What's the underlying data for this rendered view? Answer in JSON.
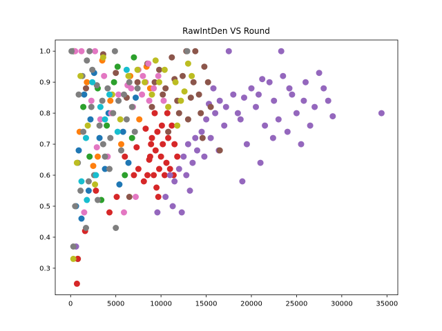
{
  "chart_data": {
    "type": "scatter",
    "title": "RawIntDen VS Round",
    "xlabel": "",
    "ylabel": "",
    "xlim": [
      -1700,
      36200
    ],
    "ylim": [
      0.214,
      1.036
    ],
    "xticks": [
      0,
      5000,
      10000,
      15000,
      20000,
      25000,
      30000,
      35000
    ],
    "xtick_labels": [
      "0",
      "5000",
      "10000",
      "15000",
      "20000",
      "25000",
      "30000",
      "35000"
    ],
    "yticks": [
      0.3,
      0.4,
      0.5,
      0.6,
      0.7,
      0.8,
      0.9,
      1.0
    ],
    "ytick_labels": [
      "0.3",
      "0.4",
      "0.5",
      "0.6",
      "0.7",
      "0.8",
      "0.9",
      "1.0"
    ],
    "grid": false,
    "legend": false,
    "series_colors": [
      "#1f77b4",
      "#ff7f0e",
      "#2ca02c",
      "#d62728",
      "#9467bd",
      "#8c564b",
      "#e377c2",
      "#7f7f7f",
      "#bcbd22",
      "#17becf"
    ],
    "series": [
      {
        "values": [
          [
            200,
            1.0
          ],
          [
            600,
            0.5
          ],
          [
            900,
            0.68
          ],
          [
            1200,
            0.46
          ],
          [
            1500,
            0.86
          ],
          [
            2000,
            0.55
          ],
          [
            2600,
            0.93
          ],
          [
            3200,
            0.72
          ],
          [
            4200,
            0.8
          ],
          [
            5400,
            0.57
          ],
          [
            6400,
            0.64
          ],
          [
            7200,
            0.85
          ],
          [
            3800,
            0.62
          ],
          [
            5800,
            0.74
          ],
          [
            2200,
            0.78
          ]
        ]
      },
      {
        "values": [
          [
            400,
            1.0
          ],
          [
            1000,
            0.74
          ],
          [
            1800,
            0.9
          ],
          [
            2500,
            0.63
          ],
          [
            3500,
            0.97
          ],
          [
            4400,
            0.84
          ],
          [
            5600,
            0.7
          ],
          [
            6600,
            0.92
          ],
          [
            7600,
            0.78
          ],
          [
            8400,
            0.95
          ],
          [
            8800,
            0.88
          ],
          [
            3000,
            0.66
          ]
        ]
      },
      {
        "values": [
          [
            300,
            1.0
          ],
          [
            800,
            0.33
          ],
          [
            1400,
            0.82
          ],
          [
            2100,
            0.66
          ],
          [
            3000,
            0.88
          ],
          [
            4000,
            0.76
          ],
          [
            5200,
            0.95
          ],
          [
            6000,
            0.6
          ],
          [
            7000,
            0.98
          ],
          [
            3400,
            0.52
          ],
          [
            4800,
            0.9
          ],
          [
            6800,
            0.72
          ]
        ]
      },
      {
        "values": [
          [
            700,
            0.25
          ],
          [
            800,
            0.33
          ],
          [
            1600,
            0.42
          ],
          [
            2800,
            0.55
          ],
          [
            4300,
            0.48
          ],
          [
            5100,
            0.53
          ],
          [
            6000,
            0.66
          ],
          [
            7000,
            0.6
          ],
          [
            7500,
            0.62
          ],
          [
            8100,
            0.58
          ],
          [
            8500,
            0.6
          ],
          [
            8800,
            0.66
          ],
          [
            9000,
            0.72
          ],
          [
            9200,
            0.6
          ],
          [
            9400,
            0.68
          ],
          [
            9600,
            0.74
          ],
          [
            9800,
            0.62
          ],
          [
            10000,
            0.66
          ],
          [
            10200,
            0.7
          ],
          [
            10400,
            0.6
          ],
          [
            10600,
            0.64
          ],
          [
            10800,
            0.72
          ],
          [
            11000,
            0.62
          ],
          [
            11200,
            0.76
          ],
          [
            11500,
            0.7
          ],
          [
            11800,
            0.66
          ],
          [
            9300,
            0.8
          ],
          [
            8900,
            0.7
          ],
          [
            10100,
            0.76
          ],
          [
            10700,
            0.8
          ],
          [
            9500,
            0.56
          ],
          [
            9700,
            0.53
          ],
          [
            8700,
            0.65
          ],
          [
            11400,
            0.6
          ],
          [
            7300,
            0.69
          ],
          [
            8300,
            0.75
          ]
        ]
      },
      {
        "values": [
          [
            600,
            0.37
          ],
          [
            9600,
            0.48
          ],
          [
            10500,
            0.53
          ],
          [
            11000,
            0.6
          ],
          [
            11500,
            0.58
          ],
          [
            12000,
            0.62
          ],
          [
            12500,
            0.66
          ],
          [
            13000,
            0.7
          ],
          [
            13500,
            0.64
          ],
          [
            14000,
            0.68
          ],
          [
            14500,
            0.74
          ],
          [
            15000,
            0.78
          ],
          [
            15500,
            0.72
          ],
          [
            16000,
            0.8
          ],
          [
            16500,
            0.84
          ],
          [
            17000,
            0.76
          ],
          [
            17500,
            1.0
          ],
          [
            18000,
            0.86
          ],
          [
            18500,
            0.8
          ],
          [
            19000,
            0.58
          ],
          [
            19500,
            0.7
          ],
          [
            20000,
            0.88
          ],
          [
            20500,
            0.82
          ],
          [
            21000,
            0.64
          ],
          [
            21500,
            0.76
          ],
          [
            22000,
            0.9
          ],
          [
            22500,
            0.84
          ],
          [
            23000,
            0.78
          ],
          [
            23500,
            0.92
          ],
          [
            24000,
            0.74
          ],
          [
            24500,
            0.86
          ],
          [
            25000,
            0.8
          ],
          [
            25500,
            0.7
          ],
          [
            26000,
            0.9
          ],
          [
            26500,
            0.76
          ],
          [
            27000,
            0.82
          ],
          [
            27500,
            0.93
          ],
          [
            28000,
            0.88
          ],
          [
            28500,
            0.84
          ],
          [
            29000,
            0.79
          ],
          [
            34400,
            0.8
          ],
          [
            22400,
            0.72
          ],
          [
            23300,
            1.0
          ],
          [
            20800,
            0.86
          ],
          [
            19200,
            0.85
          ],
          [
            24200,
            0.88
          ],
          [
            25800,
            0.84
          ],
          [
            21200,
            0.91
          ],
          [
            18800,
            0.78
          ],
          [
            17200,
            0.82
          ],
          [
            16400,
            0.68
          ],
          [
            13200,
            0.55
          ],
          [
            12300,
            0.48
          ],
          [
            14800,
            0.66
          ],
          [
            15800,
            0.88
          ],
          [
            11300,
            0.5
          ],
          [
            12800,
            0.6
          ],
          [
            13800,
            0.72
          ],
          [
            15300,
            0.83
          ]
        ]
      },
      {
        "values": [
          [
            1700,
            0.88
          ],
          [
            3600,
            0.99
          ],
          [
            5000,
            0.93
          ],
          [
            6200,
            0.85
          ],
          [
            7400,
            0.9
          ],
          [
            8500,
            0.96
          ],
          [
            9000,
            0.82
          ],
          [
            9800,
            0.94
          ],
          [
            10500,
            0.88
          ],
          [
            11200,
            0.98
          ],
          [
            11800,
            0.84
          ],
          [
            12400,
            0.92
          ],
          [
            13000,
            0.78
          ],
          [
            13600,
            0.9
          ],
          [
            14200,
            0.86
          ],
          [
            14800,
            0.95
          ],
          [
            15500,
            0.82
          ],
          [
            16500,
            0.68
          ],
          [
            12800,
            1.0
          ],
          [
            13800,
            1.0
          ],
          [
            14600,
            0.72
          ],
          [
            10800,
            0.74
          ],
          [
            12000,
            0.8
          ],
          [
            13300,
            0.85
          ],
          [
            11500,
            0.91
          ],
          [
            14400,
            0.8
          ],
          [
            6500,
            0.53
          ],
          [
            15200,
            0.9
          ],
          [
            9300,
            0.9
          ],
          [
            10200,
            0.86
          ]
        ]
      },
      {
        "values": [
          [
            500,
            1.0
          ],
          [
            1500,
            0.48
          ],
          [
            2300,
            0.84
          ],
          [
            2900,
            0.69
          ],
          [
            3700,
            0.92
          ],
          [
            4500,
            0.8
          ],
          [
            5300,
            0.86
          ],
          [
            5900,
            0.48
          ],
          [
            6300,
            0.89
          ],
          [
            6900,
            0.82
          ],
          [
            7500,
            0.94
          ],
          [
            7900,
            0.86
          ],
          [
            8300,
            0.9
          ],
          [
            8700,
            0.84
          ],
          [
            9200,
            0.88
          ],
          [
            9700,
            0.92
          ],
          [
            10300,
            0.84
          ],
          [
            7200,
            0.53
          ],
          [
            4100,
            0.66
          ],
          [
            3300,
            0.78
          ],
          [
            8000,
            0.92
          ],
          [
            6700,
            0.88
          ],
          [
            8600,
            0.96
          ],
          [
            1200,
            1.0
          ],
          [
            2700,
            1.0
          ]
        ]
      },
      {
        "values": [
          [
            100,
            1.0
          ],
          [
            300,
            0.37
          ],
          [
            500,
            0.5
          ],
          [
            800,
            0.64
          ],
          [
            1100,
            0.55
          ],
          [
            1400,
            0.74
          ],
          [
            1700,
            0.43
          ],
          [
            2000,
            0.58
          ],
          [
            2300,
            0.82
          ],
          [
            2600,
            0.6
          ],
          [
            2900,
            0.89
          ],
          [
            3200,
            0.76
          ],
          [
            3500,
            0.84
          ],
          [
            3800,
            0.66
          ],
          [
            4100,
            0.88
          ],
          [
            4400,
            0.72
          ],
          [
            4700,
            0.8
          ],
          [
            5000,
            0.43
          ],
          [
            5300,
            0.84
          ],
          [
            5600,
            0.68
          ],
          [
            5900,
            0.86
          ],
          [
            6200,
            0.78
          ],
          [
            6500,
            0.9
          ],
          [
            6800,
            0.82
          ],
          [
            7100,
            0.74
          ],
          [
            7400,
            0.88
          ],
          [
            1800,
            0.97
          ],
          [
            2400,
            0.94
          ],
          [
            3000,
            0.52
          ],
          [
            900,
            0.86
          ],
          [
            4300,
            0.62
          ],
          [
            3600,
            0.7
          ],
          [
            1300,
            0.92
          ],
          [
            2100,
            1.0
          ],
          [
            4900,
            1.0
          ],
          [
            12900,
            1.0
          ]
        ]
      },
      {
        "values": [
          [
            300,
            0.33
          ],
          [
            700,
            0.64
          ],
          [
            1100,
            0.92
          ],
          [
            1900,
            0.76
          ],
          [
            2700,
            0.57
          ],
          [
            3600,
            0.98
          ],
          [
            4600,
            0.86
          ],
          [
            5500,
            0.78
          ],
          [
            6400,
            0.92
          ],
          [
            7400,
            0.94
          ],
          [
            8200,
            0.9
          ],
          [
            9000,
            0.86
          ],
          [
            9800,
            0.9
          ],
          [
            10800,
            0.82
          ],
          [
            11800,
            0.76
          ],
          [
            12600,
            0.87
          ],
          [
            13400,
            0.92
          ],
          [
            11600,
            0.9
          ],
          [
            12200,
            0.84
          ],
          [
            10400,
            0.94
          ],
          [
            9400,
            0.97
          ],
          [
            13000,
            0.96
          ]
        ]
      },
      {
        "values": [
          [
            1200,
            0.58
          ],
          [
            1700,
            0.72
          ],
          [
            2400,
            0.9
          ],
          [
            3300,
            0.82
          ],
          [
            4300,
            0.86
          ],
          [
            5200,
            0.74
          ],
          [
            6200,
            0.94
          ],
          [
            1800,
            0.52
          ],
          [
            2800,
            0.6
          ],
          [
            3800,
            0.78
          ]
        ]
      }
    ]
  }
}
